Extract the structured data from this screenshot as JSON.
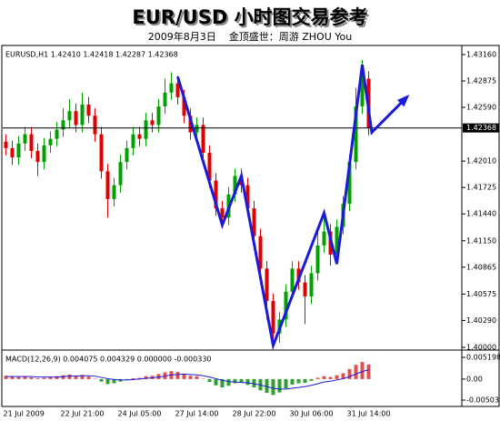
{
  "chart_data": [
    {
      "type": "candlestick",
      "title": "EUR/USD 小时图交易参考",
      "subtitle": "2009年8月3日    金顶盛世：周游 ZHOU You",
      "annotation": "EURUSD,H1 1.42410 1.42418 1.42287 1.42368",
      "categories": [
        "21 Jul 2009",
        null,
        null,
        null,
        null,
        null,
        null,
        null,
        null,
        "22 Jul 21:00",
        null,
        null,
        null,
        null,
        null,
        null,
        null,
        null,
        "24 Jul 05:00",
        null,
        null,
        null,
        null,
        null,
        null,
        null,
        null,
        "27 Jul 14:00",
        null,
        null,
        null,
        null,
        null,
        null,
        null,
        null,
        "28 Jul 22:00",
        null,
        null,
        null,
        null,
        null,
        null,
        null,
        null,
        "30 Jul 06:00",
        null,
        null,
        null,
        null,
        null,
        null,
        null,
        null,
        "31 Jul 14:00",
        null,
        null,
        null
      ],
      "open": [
        1.4222,
        1.4215,
        1.4205,
        1.422,
        1.423,
        1.4212,
        1.42,
        1.4218,
        1.4225,
        1.4235,
        1.4245,
        1.4255,
        1.424,
        1.4262,
        1.425,
        1.423,
        1.419,
        1.416,
        1.4175,
        1.42,
        1.4215,
        1.423,
        1.4225,
        1.4245,
        1.424,
        1.426,
        1.4275,
        1.4285,
        1.427,
        1.425,
        1.4232,
        1.424,
        1.421,
        1.418,
        1.415,
        1.414,
        1.4165,
        1.4185,
        1.4175,
        1.415,
        1.412,
        1.4085,
        1.405,
        1.4015,
        1.403,
        1.406,
        1.4085,
        1.407,
        1.4055,
        1.408,
        1.411,
        1.4125,
        1.41,
        1.413,
        1.4155,
        1.42,
        1.426,
        1.429
      ],
      "high": [
        1.423,
        1.4223,
        1.4228,
        1.4238,
        1.4238,
        1.422,
        1.4226,
        1.4233,
        1.4243,
        1.4258,
        1.4268,
        1.4263,
        1.4275,
        1.427,
        1.4258,
        1.4238,
        1.4198,
        1.4183,
        1.4208,
        1.4223,
        1.4238,
        1.4238,
        1.4253,
        1.4253,
        1.4268,
        1.429,
        1.4297,
        1.4293,
        1.4278,
        1.4258,
        1.4248,
        1.4248,
        1.4218,
        1.4188,
        1.4158,
        1.4173,
        1.4193,
        1.4193,
        1.4183,
        1.4158,
        1.4128,
        1.4093,
        1.4058,
        1.4038,
        1.4068,
        1.4093,
        1.4093,
        1.4078,
        1.4088,
        1.413,
        1.4145,
        1.4133,
        1.4138,
        1.4163,
        1.4208,
        1.428,
        1.431,
        1.4298
      ],
      "low": [
        1.4207,
        1.4197,
        1.4197,
        1.4212,
        1.4204,
        1.4185,
        1.4192,
        1.421,
        1.4217,
        1.4227,
        1.4237,
        1.4232,
        1.4232,
        1.4242,
        1.4222,
        1.4182,
        1.414,
        1.4152,
        1.4167,
        1.4192,
        1.4207,
        1.4217,
        1.4217,
        1.4232,
        1.4232,
        1.4252,
        1.4267,
        1.4262,
        1.4242,
        1.4224,
        1.4224,
        1.4202,
        1.4172,
        1.4142,
        1.4132,
        1.4132,
        1.4157,
        1.4167,
        1.4142,
        1.4112,
        1.4077,
        1.403,
        1.4,
        1.4005,
        1.4022,
        1.4052,
        1.4062,
        1.4025,
        1.4047,
        1.4072,
        1.4102,
        1.4088,
        1.409,
        1.4122,
        1.4147,
        1.4192,
        1.4252,
        1.4229
      ],
      "close": [
        1.4215,
        1.4205,
        1.422,
        1.423,
        1.4212,
        1.42,
        1.4218,
        1.4225,
        1.4235,
        1.4245,
        1.4255,
        1.424,
        1.4262,
        1.425,
        1.423,
        1.419,
        1.416,
        1.4175,
        1.42,
        1.4215,
        1.423,
        1.4225,
        1.4245,
        1.424,
        1.426,
        1.4275,
        1.4285,
        1.427,
        1.425,
        1.4232,
        1.424,
        1.421,
        1.418,
        1.415,
        1.414,
        1.4165,
        1.4185,
        1.4175,
        1.415,
        1.412,
        1.4085,
        1.405,
        1.4015,
        1.403,
        1.406,
        1.4085,
        1.407,
        1.4055,
        1.408,
        1.411,
        1.4125,
        1.41,
        1.413,
        1.4155,
        1.42,
        1.426,
        1.429,
        1.4237
      ],
      "up_color": "#00a000",
      "down_color": "#e00000",
      "trend_line": {
        "x": [
          27,
          34,
          37,
          42,
          50,
          52,
          56,
          57.5,
          63
        ],
        "y": [
          1.4292,
          1.4132,
          1.4185,
          1.4002,
          1.4145,
          1.409,
          1.4305,
          1.4232,
          1.427
        ],
        "color": "#1a1ad8"
      },
      "last_price": 1.42368,
      "ylim": [
        1.3999,
        1.43258
      ],
      "yticks": [
        {
          "value": 1.4316,
          "label": "1.43160"
        },
        1.42875,
        {
          "value": 1.4259,
          "label": "1.42590"
        },
        {
          "value": 1.4201,
          "label": "1.42010"
        },
        1.41725,
        {
          "value": 1.4144,
          "label": "1.41440"
        },
        {
          "value": 1.4115,
          "label": "1.41150"
        },
        1.40865,
        1.40575,
        {
          "value": 1.4029,
          "label": "1.40290"
        },
        {
          "value": 1.4,
          "label": "1.40000"
        }
      ]
    },
    {
      "type": "macd",
      "annotation": "MACD(12,26,9) 0.004075 0.004329 0.000000 -0.000330",
      "values": [
        0.0008,
        0.0006,
        0.0005,
        0.0007,
        0.0004,
        0.0002,
        0.0003,
        0.0005,
        0.0007,
        0.0009,
        0.0011,
        0.0008,
        0.001,
        0.0006,
        0.0001,
        -0.0006,
        -0.0012,
        -0.001,
        -0.0006,
        -0.0002,
        0.0002,
        0.0003,
        0.0007,
        0.0008,
        0.0012,
        0.0016,
        0.0019,
        0.0017,
        0.0012,
        0.0008,
        0.0007,
        0.0001,
        -0.0007,
        -0.0015,
        -0.002,
        -0.0016,
        -0.001,
        -0.0009,
        -0.0014,
        -0.002,
        -0.0027,
        -0.0033,
        -0.0038,
        -0.0032,
        -0.0022,
        -0.0013,
        -0.001,
        -0.0009,
        -0.0004,
        0.0003,
        0.0007,
        0.0005,
        0.0009,
        0.0014,
        0.0024,
        0.0034,
        0.0041,
        0.0035
      ],
      "signal": [
        0.0006,
        0.0006,
        0.0006,
        0.0006,
        0.0006,
        0.0005,
        0.0005,
        0.0005,
        0.0005,
        0.0006,
        0.0007,
        0.0007,
        0.0008,
        0.0008,
        0.0007,
        0.0004,
        0.0001,
        -0.0001,
        -0.0002,
        -0.0002,
        -0.0001,
        0.0,
        0.0002,
        0.0003,
        0.0005,
        0.0007,
        0.001,
        0.0011,
        0.0012,
        0.0011,
        0.001,
        0.0008,
        0.0005,
        0.0001,
        -0.0003,
        -0.0006,
        -0.0007,
        -0.0008,
        -0.0009,
        -0.0011,
        -0.0014,
        -0.0018,
        -0.0022,
        -0.0024,
        -0.0024,
        -0.0022,
        -0.002,
        -0.0018,
        -0.0015,
        -0.0011,
        -0.0007,
        -0.0005,
        -0.0002,
        0.0001,
        0.0006,
        0.0012,
        0.0018,
        0.0022
      ],
      "positive_color": "#e05050",
      "negative_color": "#30a030",
      "signal_color": "#1a1ad8",
      "ylim": [
        -0.00655,
        0.00629
      ],
      "yticks": [
        0.005198,
        {
          "value": 0,
          "label": "0.00"
        },
        -0.00503
      ]
    }
  ]
}
